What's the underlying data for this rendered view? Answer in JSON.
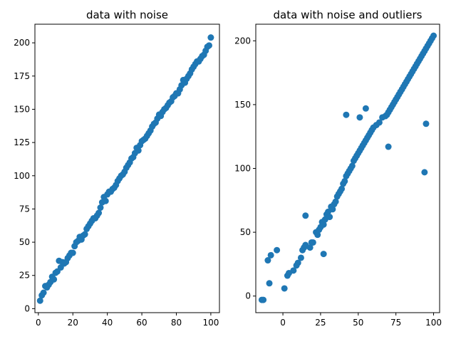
{
  "chart_data": [
    {
      "type": "scatter",
      "title": "data with noise",
      "xlim": [
        -2,
        105
      ],
      "ylim": [
        -3,
        214
      ],
      "xticks": [
        0,
        20,
        40,
        60,
        80,
        100
      ],
      "yticks": [
        0,
        25,
        50,
        75,
        100,
        125,
        150,
        175,
        200
      ],
      "grid": false,
      "color": "#1f77b4",
      "series": [
        {
          "x": [
            1,
            2,
            3,
            4,
            5,
            6,
            7,
            8,
            9,
            10,
            11,
            12,
            13,
            14,
            15,
            16,
            17,
            18,
            19,
            20,
            21,
            22,
            23,
            24,
            25,
            26,
            27,
            28,
            29,
            30,
            31,
            32,
            33,
            34,
            35,
            36,
            37,
            38,
            39,
            40,
            41,
            42,
            43,
            44,
            45,
            46,
            47,
            48,
            49,
            50,
            51,
            52,
            53,
            54,
            55,
            56,
            57,
            58,
            59,
            60,
            61,
            62,
            63,
            64,
            65,
            66,
            67,
            68,
            69,
            70,
            71,
            72,
            73,
            74,
            75,
            76,
            77,
            78,
            79,
            80,
            81,
            82,
            83,
            84,
            85,
            86,
            87,
            88,
            89,
            90,
            91,
            92,
            93,
            94,
            95,
            96,
            97,
            98,
            99,
            100
          ],
          "y": [
            6,
            10,
            12,
            17,
            16,
            18,
            20,
            24,
            22,
            27,
            28,
            36,
            31,
            35,
            34,
            35,
            38,
            40,
            42,
            42,
            47,
            50,
            51,
            54,
            52,
            55,
            56,
            60,
            62,
            64,
            66,
            68,
            68,
            70,
            72,
            76,
            80,
            84,
            81,
            86,
            88,
            88,
            90,
            91,
            93,
            96,
            98,
            100,
            101,
            103,
            106,
            108,
            110,
            113,
            114,
            117,
            121,
            119,
            123,
            126,
            127,
            128,
            130,
            132,
            134,
            137,
            139,
            140,
            143,
            146,
            145,
            148,
            150,
            151,
            153,
            155,
            156,
            159,
            160,
            162,
            162,
            165,
            168,
            172,
            170,
            173,
            175,
            177,
            180,
            182,
            184,
            186,
            186,
            188,
            190,
            191,
            194,
            197,
            198,
            204
          ]
        }
      ]
    },
    {
      "type": "scatter",
      "title": "data with noise and outliers",
      "xlim": [
        -18,
        104
      ],
      "ylim": [
        -13,
        213
      ],
      "xticks": [
        0,
        25,
        50,
        75,
        100
      ],
      "yticks": [
        0,
        50,
        100,
        150,
        200
      ],
      "grid": false,
      "color": "#1f77b4",
      "series": [
        {
          "x": [
            -14,
            -13,
            -10,
            -9,
            -8,
            -4,
            1,
            3,
            4,
            7,
            9,
            10,
            12,
            13,
            14,
            15,
            18,
            19,
            20,
            22,
            23,
            24,
            25,
            26,
            27,
            28,
            29,
            30,
            31,
            32,
            33,
            34,
            35,
            36,
            37,
            38,
            39,
            40,
            41,
            42,
            43,
            44,
            45,
            46,
            47,
            48,
            49,
            50,
            51,
            52,
            53,
            54,
            55,
            56,
            57,
            58,
            59,
            60,
            62,
            64,
            66,
            68,
            69,
            70,
            71,
            72,
            73,
            74,
            75,
            76,
            77,
            78,
            79,
            80,
            81,
            82,
            83,
            84,
            85,
            86,
            87,
            88,
            89,
            90,
            91,
            92,
            93,
            94,
            95,
            96,
            97,
            98,
            99,
            100,
            94,
            95,
            70,
            55,
            51,
            42,
            15,
            27
          ],
          "y": [
            -3,
            -3,
            28,
            10,
            32,
            36,
            6,
            16,
            18,
            20,
            24,
            26,
            30,
            36,
            38,
            40,
            38,
            42,
            42,
            50,
            48,
            52,
            54,
            58,
            56,
            60,
            64,
            66,
            62,
            70,
            68,
            72,
            74,
            78,
            80,
            82,
            84,
            88,
            90,
            94,
            96,
            98,
            100,
            102,
            106,
            108,
            110,
            112,
            114,
            116,
            118,
            120,
            122,
            124,
            126,
            128,
            130,
            132,
            134,
            136,
            140,
            141,
            142,
            144,
            146,
            148,
            150,
            152,
            154,
            156,
            158,
            160,
            162,
            164,
            166,
            168,
            170,
            172,
            174,
            176,
            178,
            180,
            182,
            184,
            186,
            188,
            190,
            192,
            194,
            196,
            198,
            200,
            202,
            204,
            97,
            135,
            117,
            147,
            140,
            142,
            63,
            33
          ]
        }
      ]
    }
  ]
}
